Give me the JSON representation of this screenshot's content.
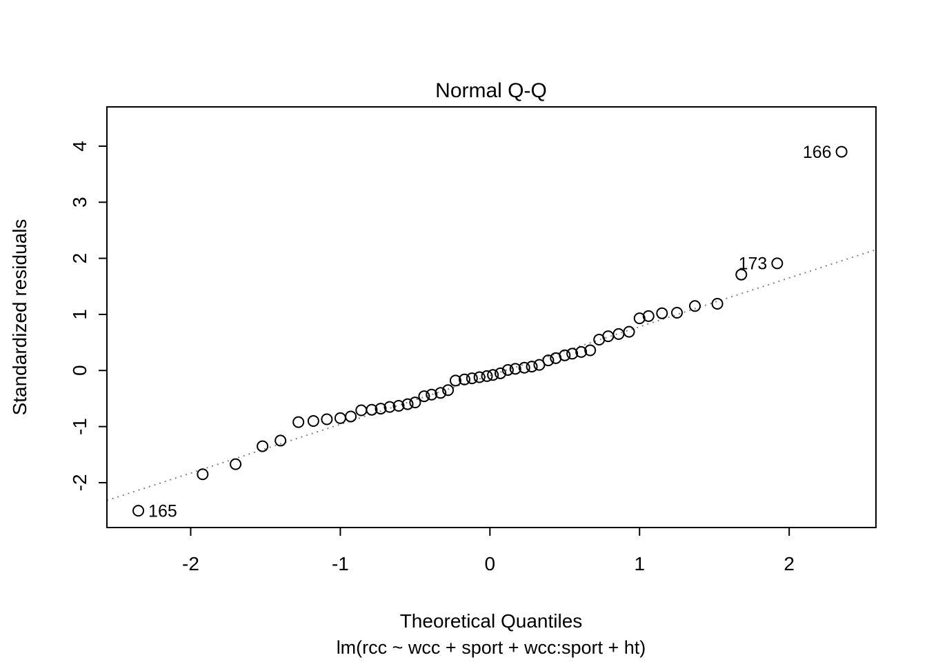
{
  "page": {
    "background": "#ffffff",
    "foreground": "#000000"
  },
  "chart_data": {
    "type": "scatter",
    "title": "Normal Q-Q",
    "xlabel": "Theoretical Quantiles",
    "ylabel": "Standardized residuals",
    "subtitle": "lm(rcc ~ wcc + sport + wcc:sport + ht)",
    "xlim": [
      -2.56,
      2.58
    ],
    "ylim": [
      -2.8,
      4.7
    ],
    "x_ticks": [
      -2,
      -1,
      0,
      1,
      2
    ],
    "y_ticks": [
      -2,
      -1,
      0,
      1,
      2,
      3,
      4
    ],
    "grid": false,
    "legend": false,
    "point_style": {
      "shape": "open-circle",
      "color": "#000000",
      "radius_px": 7.5
    },
    "reference_line": {
      "slope": 0.87,
      "intercept": -0.09,
      "style": "dotted",
      "color": "#7f7f7f"
    },
    "points": [
      [
        -1.92,
        -1.85
      ],
      [
        -1.7,
        -1.67
      ],
      [
        -1.52,
        -1.35
      ],
      [
        -1.4,
        -1.25
      ],
      [
        -1.28,
        -0.92
      ],
      [
        -1.18,
        -0.9
      ],
      [
        -1.09,
        -0.87
      ],
      [
        -1.0,
        -0.85
      ],
      [
        -0.93,
        -0.82
      ],
      [
        -0.86,
        -0.71
      ],
      [
        -0.79,
        -0.7
      ],
      [
        -0.73,
        -0.68
      ],
      [
        -0.67,
        -0.65
      ],
      [
        -0.61,
        -0.63
      ],
      [
        -0.55,
        -0.6
      ],
      [
        -0.5,
        -0.57
      ],
      [
        -0.44,
        -0.46
      ],
      [
        -0.39,
        -0.43
      ],
      [
        -0.33,
        -0.4
      ],
      [
        -0.28,
        -0.35
      ],
      [
        -0.23,
        -0.18
      ],
      [
        -0.17,
        -0.16
      ],
      [
        -0.12,
        -0.14
      ],
      [
        -0.07,
        -0.12
      ],
      [
        -0.02,
        -0.1
      ],
      [
        0.02,
        -0.08
      ],
      [
        0.07,
        -0.05
      ],
      [
        0.12,
        0.01
      ],
      [
        0.17,
        0.03
      ],
      [
        0.23,
        0.05
      ],
      [
        0.28,
        0.07
      ],
      [
        0.33,
        0.1
      ],
      [
        0.39,
        0.18
      ],
      [
        0.44,
        0.22
      ],
      [
        0.5,
        0.27
      ],
      [
        0.55,
        0.3
      ],
      [
        0.61,
        0.33
      ],
      [
        0.67,
        0.36
      ],
      [
        0.73,
        0.55
      ],
      [
        0.79,
        0.61
      ],
      [
        0.86,
        0.65
      ],
      [
        0.93,
        0.69
      ],
      [
        1.0,
        0.93
      ],
      [
        1.06,
        0.97
      ],
      [
        1.15,
        1.02
      ],
      [
        1.25,
        1.03
      ],
      [
        1.37,
        1.15
      ],
      [
        1.52,
        1.19
      ],
      [
        1.68,
        1.71
      ]
    ],
    "labeled_points": [
      {
        "label": "165",
        "x": -2.35,
        "y": -2.5,
        "label_side": "right"
      },
      {
        "label": "173",
        "x": 1.92,
        "y": 1.91,
        "label_side": "left"
      },
      {
        "label": "166",
        "x": 2.35,
        "y": 3.9,
        "label_side": "left"
      }
    ]
  }
}
